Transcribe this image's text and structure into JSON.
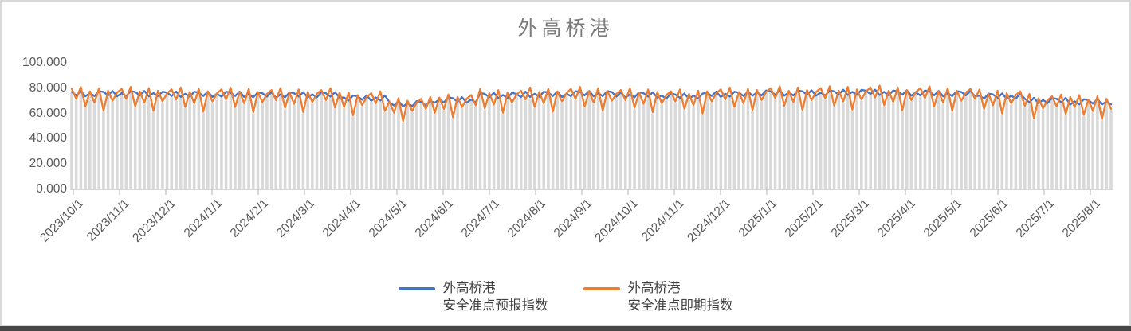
{
  "chart_data": {
    "type": "line",
    "title": "外高桥港",
    "x_tick_labels": [
      "2023/10/1",
      "2023/11/1",
      "2023/12/1",
      "2024/1/1",
      "2024/2/1",
      "2024/3/1",
      "2024/4/1",
      "2024/5/1",
      "2024/6/1",
      "2024/7/1",
      "2024/8/1",
      "2024/9/1",
      "2024/10/1",
      "2024/11/1",
      "2024/12/1",
      "2025/1/1",
      "2025/2/1",
      "2025/3/1",
      "2025/4/1",
      "2025/5/1",
      "2025/6/1",
      "2025/7/1",
      "2025/8/1"
    ],
    "y_tick_labels": [
      "0.000",
      "20.000",
      "40.000",
      "60.000",
      "80.000",
      "100.000"
    ],
    "ylim": [
      0,
      100
    ],
    "grid": false,
    "legend_position": "bottom",
    "colors": {
      "drop_line_bars": "#d9d9d9",
      "axis_line": "#bfbfbf",
      "axis_text": "#595959",
      "title_text": "#7b7b7b",
      "legend_text": "#404040"
    },
    "series": [
      {
        "name": "外高桥港\n安全准点预报指数",
        "color": "#4472C4",
        "values": [
          77.0,
          74.3,
          77.8,
          73.5,
          76.1,
          73.7,
          77.7,
          77.0,
          74.3,
          77.8,
          73.5,
          76.1,
          73.7,
          77.7,
          77.0,
          74.3,
          77.8,
          73.5,
          76.1,
          73.7,
          77.2,
          76.5,
          73.8,
          77.3,
          73.0,
          75.6,
          73.2,
          77.2,
          76.5,
          73.8,
          77.3,
          73.0,
          75.6,
          73.2,
          77.2,
          76.5,
          73.8,
          77.3,
          73.0,
          75.6,
          72.7,
          76.7,
          76.0,
          73.3,
          76.8,
          72.5,
          75.1,
          72.7,
          76.7,
          76.0,
          73.3,
          76.8,
          72.5,
          75.1,
          72.7,
          76.7,
          76.0,
          73.3,
          76.8,
          72.5,
          72.6,
          70.2,
          74.2,
          73.5,
          70.8,
          74.3,
          70.0,
          72.6,
          70.2,
          74.2,
          69.0,
          66.3,
          69.8,
          65.5,
          68.1,
          65.7,
          69.7,
          69.0,
          66.3,
          69.8,
          68.5,
          71.1,
          68.7,
          72.7,
          72.0,
          69.3,
          72.8,
          68.5,
          71.1,
          68.7,
          76.2,
          75.5,
          72.8,
          76.3,
          72.0,
          74.6,
          72.2,
          76.2,
          75.5,
          72.8,
          77.3,
          73.0,
          75.6,
          73.2,
          77.2,
          76.5,
          73.8,
          77.3,
          73.0,
          75.6,
          73.7,
          77.7,
          77.0,
          74.3,
          77.8,
          73.5,
          76.1,
          73.7,
          77.7,
          77.0,
          73.3,
          76.8,
          72.5,
          75.1,
          72.7,
          76.7,
          76.0,
          73.3,
          76.8,
          72.5,
          74.1,
          71.7,
          75.7,
          75.0,
          72.3,
          75.8,
          71.5,
          74.1,
          71.7,
          75.7,
          76.5,
          73.8,
          77.3,
          73.0,
          75.6,
          73.2,
          77.2,
          76.5,
          73.8,
          77.3,
          74.0,
          76.6,
          74.2,
          78.2,
          77.5,
          74.8,
          78.3,
          74.0,
          76.6,
          74.2,
          78.2,
          77.5,
          74.8,
          78.3,
          74.0,
          76.6,
          74.2,
          78.2,
          77.5,
          74.8,
          78.8,
          74.5,
          77.1,
          74.7,
          78.7,
          78.0,
          75.3,
          78.8,
          74.5,
          77.1,
          74.2,
          78.2,
          77.5,
          74.8,
          78.3,
          74.0,
          76.6,
          74.2,
          78.2,
          77.5,
          74.3,
          77.8,
          73.5,
          76.1,
          73.7,
          77.7,
          77.0,
          74.3,
          77.8,
          73.5,
          74.1,
          71.7,
          75.7,
          75.0,
          72.3,
          75.8,
          71.5,
          74.1,
          71.7,
          75.7,
          71.5,
          68.8,
          72.3,
          68.0,
          70.6,
          68.2,
          72.2,
          71.5,
          68.8,
          72.3,
          67.0,
          69.6,
          67.2,
          71.2,
          70.5,
          67.8,
          71.3,
          67.0,
          69.6,
          67.2
        ]
      },
      {
        "name": "外高桥港\n安全准点即期指数",
        "color": "#ED7D31",
        "values": [
          79.5,
          71.5,
          81.0,
          65.5,
          77.5,
          68.5,
          80.0,
          62.0,
          78.0,
          70.0,
          76.5,
          79.5,
          71.5,
          81.0,
          65.5,
          77.5,
          68.5,
          80.0,
          62.0,
          78.0,
          69.5,
          76.0,
          79.0,
          71.0,
          80.5,
          65.0,
          77.0,
          68.0,
          79.5,
          61.5,
          77.5,
          69.5,
          76.0,
          79.0,
          71.0,
          80.5,
          65.0,
          77.0,
          68.0,
          79.5,
          61.0,
          77.0,
          69.0,
          75.5,
          78.5,
          70.5,
          80.0,
          64.5,
          76.5,
          67.5,
          79.0,
          61.0,
          77.0,
          69.0,
          75.5,
          78.5,
          70.5,
          80.0,
          64.5,
          76.5,
          65.0,
          76.5,
          58.5,
          74.5,
          66.5,
          73.0,
          76.0,
          68.0,
          77.5,
          62.0,
          69.5,
          60.5,
          72.0,
          54.0,
          70.0,
          62.0,
          68.5,
          71.5,
          63.5,
          73.0,
          60.5,
          72.5,
          63.5,
          75.0,
          57.0,
          73.0,
          65.0,
          71.5,
          74.5,
          66.5,
          79.5,
          64.0,
          76.0,
          67.0,
          78.5,
          60.5,
          76.5,
          68.5,
          75.0,
          78.0,
          71.0,
          80.5,
          65.0,
          77.0,
          68.0,
          79.5,
          61.5,
          77.5,
          69.5,
          76.0,
          79.5,
          71.5,
          81.0,
          65.5,
          77.5,
          68.5,
          80.0,
          62.0,
          78.0,
          70.0,
          75.5,
          78.5,
          70.5,
          80.0,
          64.5,
          76.5,
          67.5,
          79.0,
          61.0,
          77.0,
          68.0,
          74.5,
          77.5,
          69.5,
          79.0,
          63.5,
          75.5,
          66.5,
          78.0,
          60.0,
          77.5,
          69.5,
          76.0,
          79.0,
          71.0,
          80.5,
          65.0,
          77.0,
          68.0,
          79.5,
          62.5,
          78.5,
          70.5,
          77.0,
          80.0,
          72.0,
          81.5,
          66.0,
          78.0,
          69.0,
          80.5,
          62.5,
          78.5,
          70.5,
          77.0,
          80.0,
          72.0,
          81.5,
          66.0,
          78.0,
          69.5,
          81.0,
          63.0,
          79.0,
          71.0,
          77.5,
          80.5,
          72.5,
          82.0,
          66.5,
          78.0,
          69.0,
          80.5,
          62.5,
          78.5,
          70.5,
          77.0,
          80.0,
          72.0,
          81.5,
          65.5,
          77.5,
          68.5,
          80.0,
          62.0,
          78.0,
          70.0,
          76.5,
          79.5,
          71.5,
          79.0,
          63.5,
          75.5,
          66.5,
          78.0,
          60.0,
          76.0,
          68.0,
          74.5,
          77.5,
          66.0,
          75.5,
          56.0,
          72.0,
          64.0,
          70.5,
          73.5,
          65.5,
          75.0,
          59.5,
          73.0,
          65.0,
          74.5,
          59.0,
          71.0,
          62.0,
          73.5,
          55.5,
          71.5,
          63.5
        ]
      }
    ]
  }
}
